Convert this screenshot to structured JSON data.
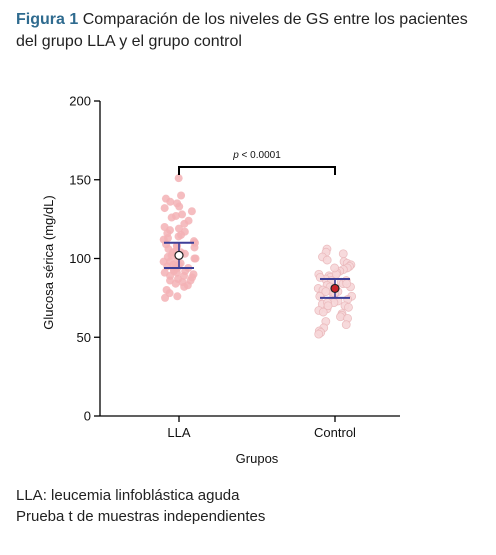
{
  "caption": {
    "label": "Figura 1",
    "text": "Comparación de los niveles de GS entre los pacientes del grupo LLA y el grupo control"
  },
  "footer": {
    "line1": "LLA: leucemia linfoblástica aguda",
    "line2": "Prueba t de muestras independientes"
  },
  "colors": {
    "lla_points": "#f3b2b5",
    "control_points": "#f7d7d9",
    "control_points_edge": "#eab8bb",
    "error_bars": "#3d3f98",
    "mean_fill_control": "#c8242a"
  },
  "chart_data": {
    "type": "scatter",
    "xlabel": "Grupos",
    "ylabel": "Glucosa sérica (mg/dL)",
    "ylim": [
      0,
      200
    ],
    "yticks": [
      0,
      50,
      100,
      150,
      200
    ],
    "categories": [
      "LLA",
      "Control"
    ],
    "significance": "p < 0.0001",
    "series": [
      {
        "name": "LLA",
        "mean": 102,
        "ci": [
          94,
          110
        ],
        "values": [
          151,
          140,
          138,
          136,
          135,
          133,
          132,
          130,
          128,
          127,
          126,
          124,
          122,
          120,
          119,
          118,
          117,
          116,
          115,
          114,
          113,
          112,
          111,
          110,
          109,
          108,
          107,
          106,
          105,
          104,
          103,
          102,
          101,
          100,
          99,
          98,
          97,
          96,
          95,
          94,
          93,
          92,
          91,
          90,
          89,
          88,
          87,
          86,
          85,
          84,
          83,
          82,
          80,
          78,
          76,
          75,
          98,
          95,
          92,
          89,
          100,
          104,
          108,
          96,
          91,
          86,
          94,
          102
        ]
      },
      {
        "name": "Control",
        "mean": 81,
        "ci": [
          75,
          87
        ],
        "values": [
          106,
          104,
          103,
          101,
          99,
          98,
          97,
          96,
          95,
          94,
          93,
          92,
          91,
          90,
          89,
          88,
          87,
          86,
          85,
          84,
          83,
          82,
          81,
          80,
          79,
          78,
          77,
          76,
          75,
          74,
          73,
          72,
          71,
          70,
          69,
          68,
          67,
          66,
          65,
          64,
          63,
          62,
          60,
          58,
          56,
          54,
          53,
          52,
          90,
          86,
          84,
          80,
          78,
          76,
          72,
          94,
          88,
          82,
          79,
          70
        ]
      }
    ]
  }
}
